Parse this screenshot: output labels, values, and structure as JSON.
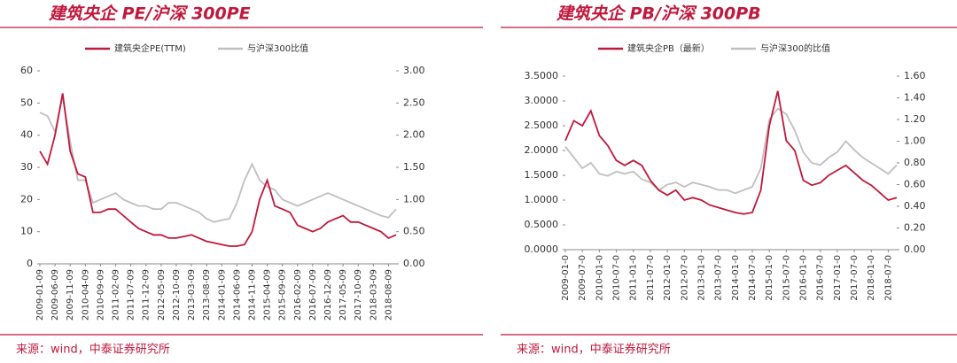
{
  "chart_data": [
    {
      "type": "line",
      "title": "建筑央企 PE/沪深 300PE",
      "source": "来源：wind，中泰证券研究所",
      "categories": [
        "2009-01-09",
        null,
        "2009-06-09",
        null,
        "2009-11-09",
        null,
        "2010-04-09",
        null,
        "2010-09-09",
        null,
        "2011-02-09",
        null,
        "2011-07-09",
        null,
        "2011-12-09",
        null,
        "2012-05-09",
        null,
        "2012-10-09",
        null,
        "2013-03-09",
        null,
        "2013-08-09",
        null,
        "2014-01-09",
        null,
        "2014-06-09",
        null,
        "2014-11-09",
        null,
        "2015-04-09",
        null,
        "2015-09-09",
        null,
        "2016-02-09",
        null,
        "2016-07-09",
        null,
        "2016-12-09",
        null,
        "2017-05-09",
        null,
        "2017-10-09",
        null,
        "2018-03-09",
        null,
        "2018-08-09",
        null
      ],
      "series": [
        {
          "name": "建筑央企PE(TTM)",
          "color": "#c0183c",
          "values": [
            35,
            31,
            40,
            53,
            35,
            28,
            27,
            16,
            16,
            17,
            17,
            15,
            13,
            11,
            10,
            9,
            9,
            8,
            8,
            8.5,
            9,
            8,
            7,
            6.5,
            6,
            5.5,
            5.5,
            6,
            10,
            20,
            26,
            18,
            17,
            16,
            12,
            11,
            10,
            11,
            13,
            14,
            15,
            13,
            13,
            12,
            11,
            10,
            8,
            9
          ]
        },
        {
          "name": "与沪深300比值",
          "color": "#bfbfbf",
          "axis": "y2",
          "values": [
            2.35,
            2.3,
            2.05,
            2.6,
            1.9,
            1.3,
            1.3,
            0.95,
            1.0,
            1.05,
            1.1,
            1.0,
            0.95,
            0.9,
            0.9,
            0.85,
            0.85,
            0.95,
            0.95,
            0.9,
            0.85,
            0.8,
            0.7,
            0.65,
            0.68,
            0.7,
            0.95,
            1.3,
            1.55,
            1.3,
            1.2,
            1.15,
            1.0,
            0.95,
            0.9,
            0.95,
            1.0,
            1.05,
            1.1,
            1.05,
            1.0,
            0.95,
            0.9,
            0.85,
            0.8,
            0.75,
            0.72,
            0.85
          ]
        }
      ],
      "ylim": [
        0,
        60
      ],
      "yticks": [
        0,
        10,
        20,
        30,
        40,
        50,
        60
      ],
      "y2lim": [
        0,
        3
      ],
      "y2ticks": [
        {
          "value": 0,
          "label": "0.00"
        },
        {
          "value": 0.5,
          "label": "0.50"
        },
        {
          "value": 1,
          "label": "1.00"
        },
        {
          "value": 1.5,
          "label": "1.50"
        },
        {
          "value": 2,
          "label": "2.00"
        },
        {
          "value": 2.5,
          "label": "2.50"
        },
        {
          "value": 3,
          "label": "3.00"
        }
      ],
      "grid": false
    },
    {
      "type": "line",
      "title": "建筑央企 PB/沪深 300PB",
      "source": "来源：wind，中泰证券研究所",
      "categories": [
        "2009-01-0",
        null,
        "2009-07-0",
        null,
        "2010-01-0",
        null,
        "2010-07-0",
        null,
        "2011-01-0",
        null,
        "2011-07-0",
        null,
        "2012-01-0",
        null,
        "2012-07-0",
        null,
        "2013-01-0",
        null,
        "2013-07-0",
        null,
        "2014-01-0",
        null,
        "2014-07-0",
        null,
        "2015-01-0",
        null,
        "2015-07-0",
        null,
        "2016-01-0",
        null,
        "2016-07-0",
        null,
        "2017-01-0",
        null,
        "2017-07-0",
        null,
        "2018-01-0",
        null,
        "2018-07-0",
        null
      ],
      "series": [
        {
          "name": "建筑央企PB（最新）",
          "color": "#c0183c",
          "values": [
            2.2,
            2.6,
            2.5,
            2.8,
            2.3,
            2.1,
            1.8,
            1.7,
            1.8,
            1.7,
            1.4,
            1.2,
            1.1,
            1.2,
            1.0,
            1.05,
            1.0,
            0.9,
            0.85,
            0.8,
            0.75,
            0.72,
            0.75,
            1.2,
            2.5,
            3.2,
            2.2,
            2.0,
            1.4,
            1.3,
            1.35,
            1.5,
            1.6,
            1.7,
            1.55,
            1.4,
            1.3,
            1.15,
            1.0,
            1.05
          ]
        },
        {
          "name": "与沪深300的比值",
          "color": "#bfbfbf",
          "axis": "y2",
          "values": [
            0.95,
            0.85,
            0.75,
            0.8,
            0.7,
            0.68,
            0.72,
            0.7,
            0.72,
            0.65,
            0.62,
            0.55,
            0.6,
            0.62,
            0.58,
            0.62,
            0.6,
            0.58,
            0.55,
            0.55,
            0.52,
            0.55,
            0.58,
            0.75,
            1.2,
            1.3,
            1.25,
            1.1,
            0.9,
            0.8,
            0.78,
            0.85,
            0.9,
            1.0,
            0.92,
            0.85,
            0.8,
            0.75,
            0.7,
            0.78
          ]
        }
      ],
      "ylim": [
        0,
        3.5
      ],
      "yticks": [
        {
          "value": 0,
          "label": "0.0000"
        },
        {
          "value": 0.5,
          "label": "0.5000"
        },
        {
          "value": 1,
          "label": "1.0000"
        },
        {
          "value": 1.5,
          "label": "1.5000"
        },
        {
          "value": 2,
          "label": "2.0000"
        },
        {
          "value": 2.5,
          "label": "2.5000"
        },
        {
          "value": 3,
          "label": "3.0000"
        },
        {
          "value": 3.5,
          "label": "3.5000"
        }
      ],
      "y2lim": [
        0,
        1.6
      ],
      "y2ticks": [
        {
          "value": 0,
          "label": "0.00"
        },
        {
          "value": 0.2,
          "label": "0.20"
        },
        {
          "value": 0.4,
          "label": "0.40"
        },
        {
          "value": 0.6,
          "label": "0.60"
        },
        {
          "value": 0.8,
          "label": "0.80"
        },
        {
          "value": 1,
          "label": "1.00"
        },
        {
          "value": 1.2,
          "label": "1.20"
        },
        {
          "value": 1.4,
          "label": "1.40"
        },
        {
          "value": 1.6,
          "label": "1.60"
        }
      ],
      "grid": false
    }
  ]
}
